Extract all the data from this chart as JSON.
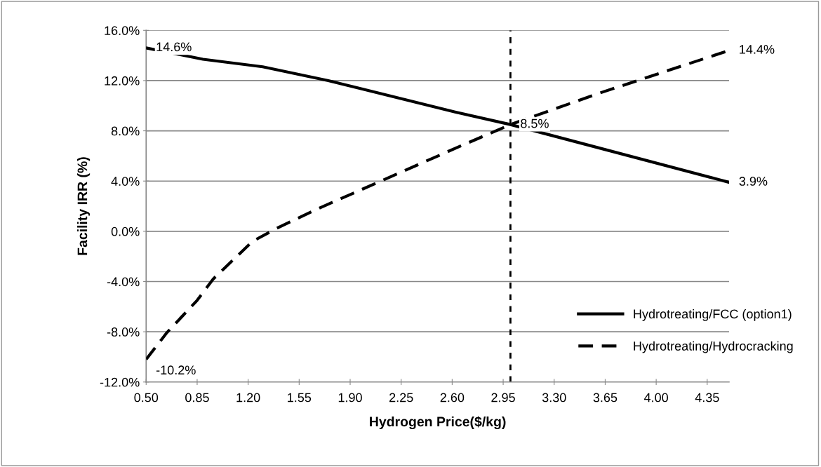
{
  "chart_data": {
    "type": "line",
    "xlabel": "Hydrogen Price($/kg)",
    "ylabel": "Facility IRR (%)",
    "xlim": [
      0.5,
      4.5
    ],
    "xticks": [
      {
        "value": 0.5,
        "label": "0.50"
      },
      {
        "value": 0.85,
        "label": "0.85"
      },
      {
        "value": 1.2,
        "label": "1.20"
      },
      {
        "value": 1.55,
        "label": "1.55"
      },
      {
        "value": 1.9,
        "label": "1.90"
      },
      {
        "value": 2.25,
        "label": "2.25"
      },
      {
        "value": 2.6,
        "label": "2.60"
      },
      {
        "value": 2.95,
        "label": "2.95"
      },
      {
        "value": 3.3,
        "label": "3.30"
      },
      {
        "value": 3.65,
        "label": "3.65"
      },
      {
        "value": 4.0,
        "label": "4.00"
      },
      {
        "value": 4.35,
        "label": "4.35"
      }
    ],
    "ylim": [
      -12,
      16
    ],
    "yticks": [
      {
        "value": -12,
        "label": "-12.0%"
      },
      {
        "value": -8,
        "label": "-8.0%"
      },
      {
        "value": -4,
        "label": "-4.0%"
      },
      {
        "value": 0,
        "label": "0.0%"
      },
      {
        "value": 4,
        "label": "4.0%"
      },
      {
        "value": 8,
        "label": "8.0%"
      },
      {
        "value": 12,
        "label": "12.0%"
      },
      {
        "value": 16,
        "label": "16.0%"
      }
    ],
    "grid": "y",
    "legend": "bottom right",
    "series": [
      {
        "name": "Hydrotreating/FCC (option1)",
        "color": "#000000",
        "line_style": "solid",
        "x": [
          0.5,
          0.89,
          1.3,
          1.75,
          2.62,
          3.0,
          4.5
        ],
        "values": [
          14.6,
          13.7,
          13.1,
          12.0,
          9.5,
          8.5,
          3.9
        ]
      },
      {
        "name": "Hydrotreating/Hydrocracking",
        "color": "#000000",
        "line_style": "dashed",
        "x": [
          0.5,
          0.64,
          0.85,
          0.96,
          1.23,
          1.39,
          1.66,
          2.62,
          3.0,
          3.61,
          4.5
        ],
        "values": [
          -10.2,
          -8.1,
          -5.5,
          -3.8,
          -0.8,
          0.2,
          1.7,
          6.6,
          8.5,
          11.0,
          14.4
        ]
      }
    ],
    "ref_lines": [
      {
        "axis": "x",
        "value": 3.0,
        "color": "#000000",
        "line_style": "dashed"
      }
    ],
    "annotations": [
      {
        "text": "14.6%",
        "x": 0.5,
        "y": 14.6
      },
      {
        "text": "8.5%",
        "x": 3.0,
        "y": 8.5
      },
      {
        "text": "3.9%",
        "x": 4.5,
        "y": 3.9
      },
      {
        "text": "14.4%",
        "x": 4.5,
        "y": 14.4
      },
      {
        "text": "-10.2%",
        "x": 0.5,
        "y": -10.2
      }
    ]
  }
}
